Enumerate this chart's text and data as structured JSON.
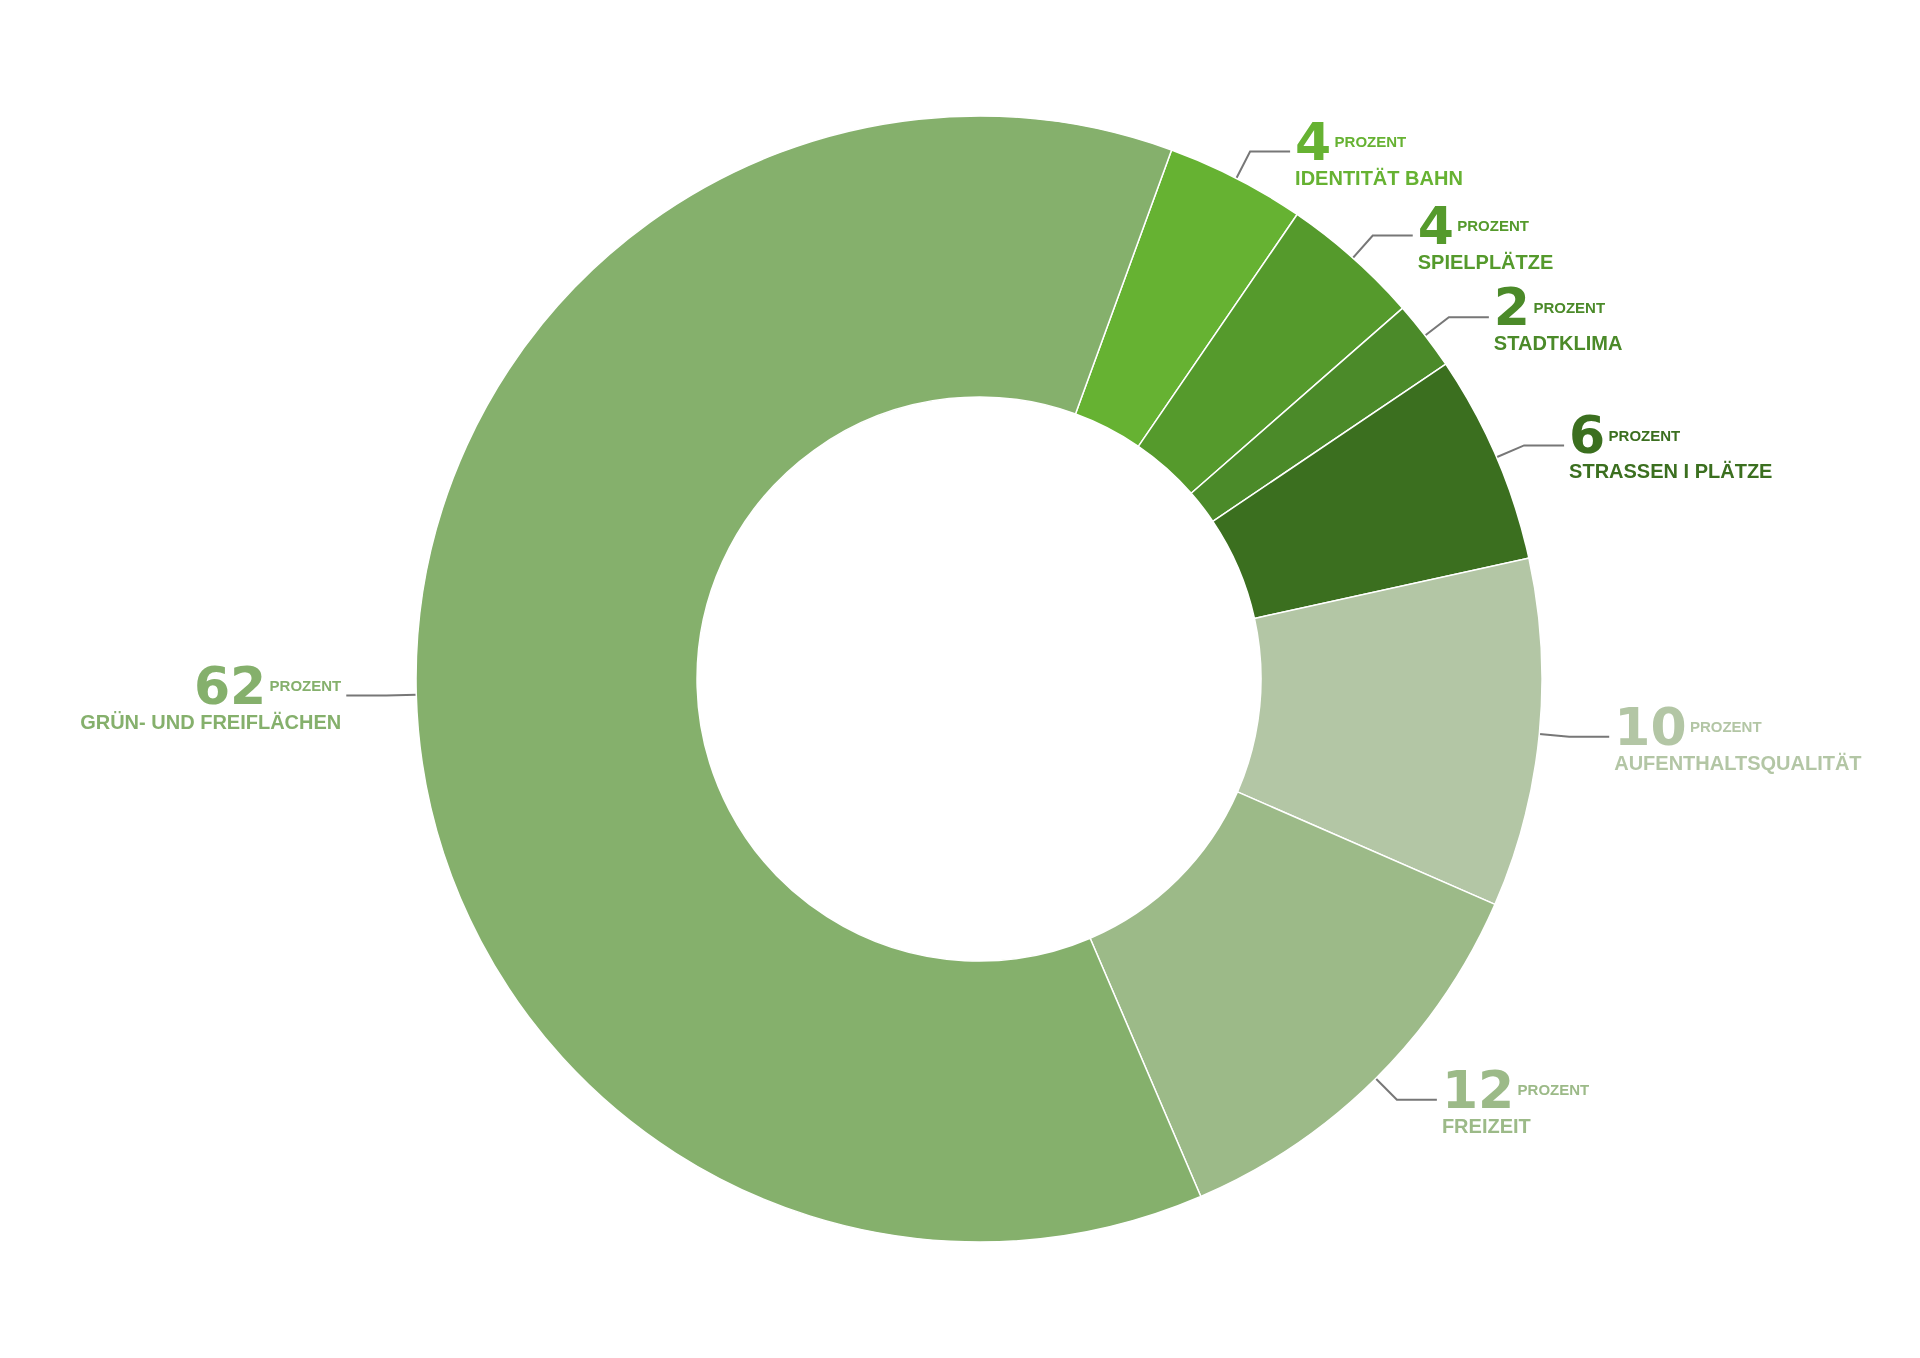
{
  "chart_data": {
    "type": "donut",
    "categories": [
      "IDENTITÄT BAHN",
      "SPIELPLÄTZE",
      "STADTKLIMA",
      "STRASSEN I PLÄTZE",
      "AUFENTHALTSQUALITÄT",
      "FREIZEIT",
      "GRÜN- UND FREIFLÄCHEN"
    ],
    "values": [
      4,
      4,
      2,
      6,
      10,
      12,
      62
    ],
    "colors": [
      "#66b232",
      "#559a2c",
      "#4b8a29",
      "#3b6f1f",
      "#b3c6a5",
      "#9cba88",
      "#85b06c"
    ],
    "data_labels": true,
    "annotations": [
      "PROZENT"
    ],
    "legend": false
  }
}
